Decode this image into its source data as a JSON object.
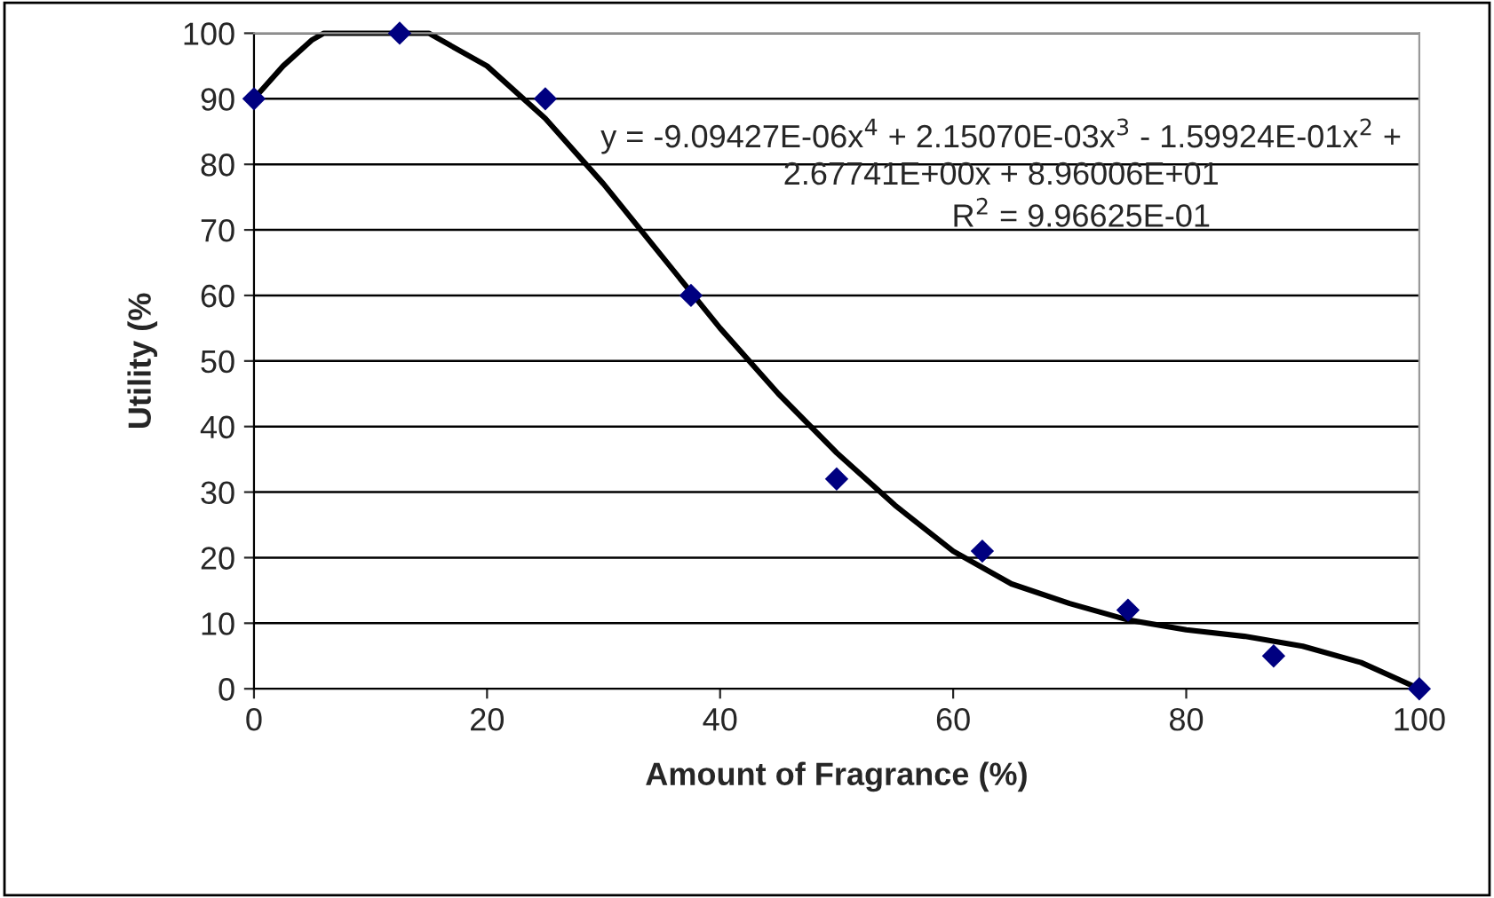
{
  "chart_data": {
    "type": "scatter",
    "xlabel": "Amount of Fragrance (%)",
    "ylabel": "Utility (%",
    "series": [
      {
        "color": "#000080",
        "marker": "diamond",
        "x": [
          0,
          12.5,
          25,
          37.5,
          50,
          62.5,
          75,
          87.5,
          100
        ],
        "values": [
          90,
          100,
          90,
          60,
          32,
          21,
          12,
          5,
          0
        ]
      },
      {
        "type": "line",
        "color": "#000000",
        "marker": "none",
        "line_style": "solid",
        "x": [
          0,
          2.5,
          5,
          6,
          10,
          15,
          20,
          25,
          30,
          35,
          40,
          45,
          50,
          55,
          60,
          65,
          70,
          75,
          80,
          85,
          90,
          95,
          100
        ],
        "values": [
          90,
          95,
          99,
          100,
          100,
          100,
          95,
          87,
          77,
          66,
          55,
          45,
          36,
          28,
          21,
          16,
          13,
          10.5,
          9,
          8,
          6.5,
          4,
          0
        ]
      }
    ],
    "annotations": [
      "y = -9.09427E-06x$^{4}$ + 2.15070E-03x$^{3}$ - 1.59924E-01x$^{2}$ +\n2.67741E+00x + 8.96006E+01",
      "R$^{2}$ = 9.96625E-01"
    ],
    "xlim": [
      0,
      100
    ],
    "xticks": [
      0,
      20,
      40,
      60,
      80,
      100
    ],
    "ylim": [
      0,
      100
    ],
    "yticks": [
      0,
      10,
      20,
      30,
      40,
      50,
      60,
      70,
      80,
      90,
      100
    ],
    "grid": "y",
    "legend": false
  }
}
